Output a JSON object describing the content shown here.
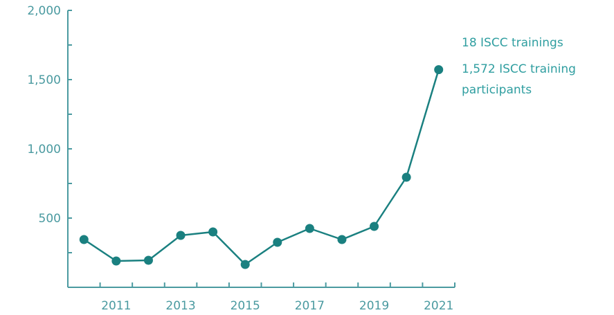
{
  "chart_data": {
    "type": "line",
    "title": "",
    "xlabel": "",
    "ylabel": "",
    "x": [
      2010,
      2011,
      2012,
      2013,
      2014,
      2015,
      2016,
      2017,
      2018,
      2019,
      2020,
      2021
    ],
    "series": [
      {
        "values": [
          345,
          190,
          195,
          375,
          400,
          165,
          325,
          425,
          345,
          440,
          795,
          1572
        ]
      }
    ],
    "x_tick_labels": [
      "2011",
      "2013",
      "2015",
      "2017",
      "2019",
      "2021"
    ],
    "y_tick_labels": [
      "500",
      "1,000",
      "1,500",
      "2,000"
    ],
    "xlim": [
      2009.5,
      2021.5
    ],
    "ylim": [
      0,
      2000
    ],
    "grid": false,
    "annotations": [
      "18 ISCC trainings",
      "1,572 ISCC training",
      "participants"
    ],
    "colors": {
      "line": "#1a8080",
      "axis": "#4a9aa0",
      "text": "#2f9ea0"
    }
  }
}
